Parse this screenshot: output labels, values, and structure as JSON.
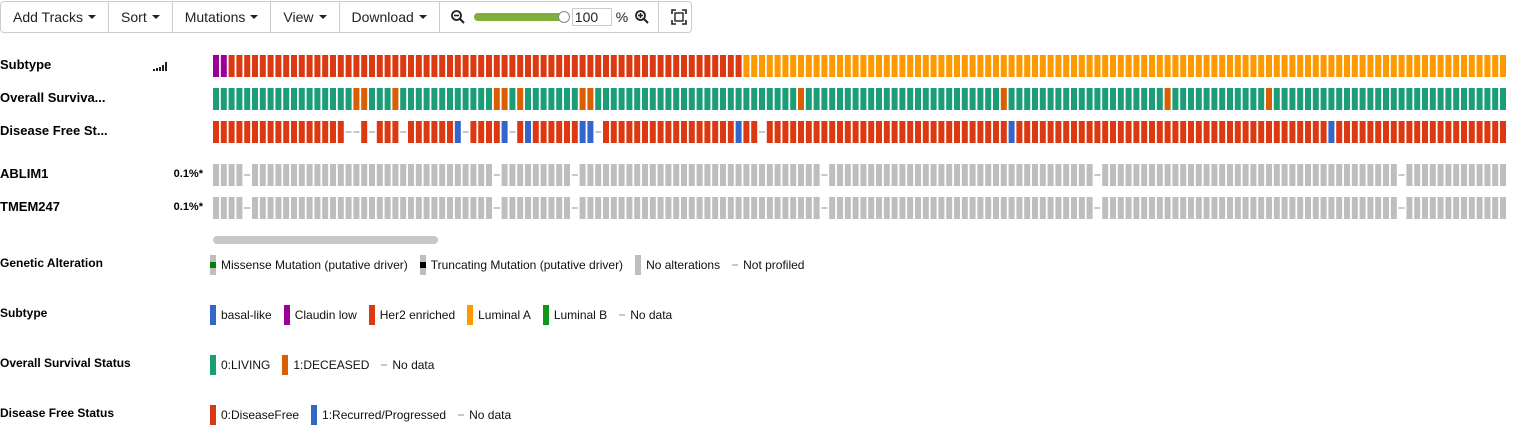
{
  "toolbar": {
    "add_tracks": "Add Tracks",
    "sort": "Sort",
    "mutations": "Mutations",
    "view": "View",
    "download": "Download",
    "zoom_value": "100",
    "zoom_unit": "%",
    "zoom_level": 1.0
  },
  "tracks": [
    {
      "label": "Subtype",
      "pct": ""
    },
    {
      "label": "Overall Surviva...",
      "pct": ""
    },
    {
      "label": "Disease Free St...",
      "pct": ""
    },
    {
      "label": "ABLIM1",
      "pct": "0.1%*"
    },
    {
      "label": "TMEM247",
      "pct": "0.1%*"
    }
  ],
  "heatmap": {
    "columns": 166,
    "subtype_runs": [
      [
        "C",
        2
      ],
      [
        "H",
        66
      ],
      [
        "A",
        98
      ]
    ],
    "os_deceased": [
      18,
      19,
      23,
      36,
      37,
      39,
      47,
      48,
      75,
      101,
      122,
      135
    ],
    "dfs_blank": [
      17,
      18,
      20,
      24,
      32,
      38,
      49,
      70
    ],
    "dfs_recurred": [
      31,
      37,
      40,
      47,
      48,
      67,
      102,
      143
    ],
    "gene_gaps": [
      4,
      36,
      46,
      78,
      113,
      152
    ],
    "colors": {
      "basal": "#3366cc",
      "claudin": "#990099",
      "her2": "#dc3912",
      "luminal_a": "#ff9900",
      "luminal_b": "#109618",
      "living": "#1b9e77",
      "deceased": "#d95f02",
      "disease_free": "#dc3912",
      "recurred": "#3366cc",
      "no_alteration": "#bebebe",
      "no_data": "#c8c8c8"
    }
  },
  "legend": {
    "genetic": {
      "title": "Genetic Alteration",
      "items": [
        "Missense Mutation (putative driver)",
        "Truncating Mutation (putative driver)",
        "No alterations",
        "Not profiled"
      ]
    },
    "subtype": {
      "title": "Subtype",
      "items": [
        "basal-like",
        "Claudin low",
        "Her2 enriched",
        "Luminal A",
        "Luminal B",
        "No data"
      ]
    },
    "os": {
      "title": "Overall Survival Status",
      "items": [
        "0:LIVING",
        "1:DECEASED",
        "No data"
      ]
    },
    "dfs": {
      "title": "Disease Free Status",
      "items": [
        "0:DiseaseFree",
        "1:Recurred/Progressed",
        "No data"
      ]
    }
  }
}
